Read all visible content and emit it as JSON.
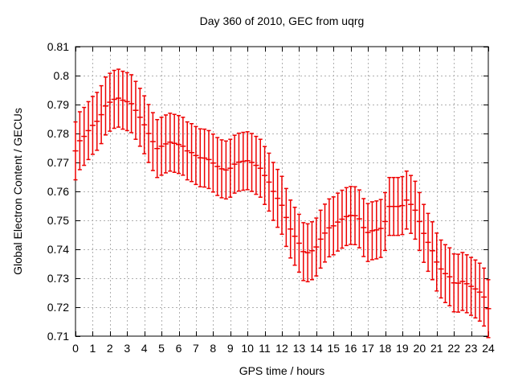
{
  "chart_data": {
    "type": "errorbar-line",
    "title": "Day 360 of 2010, GEC from uqrg",
    "xlabel": "GPS time / hours",
    "ylabel": "Global Electron Content / GECUs",
    "xlim": [
      0,
      24
    ],
    "ylim": [
      0.71,
      0.81
    ],
    "grid": true,
    "legend": "none",
    "xticks": [
      {
        "v": 0,
        "label": "0"
      },
      {
        "v": 1,
        "label": "1"
      },
      {
        "v": 2,
        "label": "2"
      },
      {
        "v": 3,
        "label": "3"
      },
      {
        "v": 4,
        "label": "4"
      },
      {
        "v": 5,
        "label": "5"
      },
      {
        "v": 6,
        "label": "6"
      },
      {
        "v": 7,
        "label": "7"
      },
      {
        "v": 8,
        "label": "8"
      },
      {
        "v": 9,
        "label": "9"
      },
      {
        "v": 10,
        "label": "10"
      },
      {
        "v": 11,
        "label": "11"
      },
      {
        "v": 12,
        "label": "12"
      },
      {
        "v": 13,
        "label": "13"
      },
      {
        "v": 14,
        "label": "14"
      },
      {
        "v": 15,
        "label": "15"
      },
      {
        "v": 16,
        "label": "16"
      },
      {
        "v": 17,
        "label": "17"
      },
      {
        "v": 18,
        "label": "18"
      },
      {
        "v": 19,
        "label": "19"
      },
      {
        "v": 20,
        "label": "20"
      },
      {
        "v": 21,
        "label": "21"
      },
      {
        "v": 22,
        "label": "22"
      },
      {
        "v": 23,
        "label": "23"
      },
      {
        "v": 24,
        "label": "24"
      }
    ],
    "yticks": [
      {
        "v": 0.71,
        "label": "0.71"
      },
      {
        "v": 0.72,
        "label": "0.72"
      },
      {
        "v": 0.73,
        "label": "0.73"
      },
      {
        "v": 0.74,
        "label": "0.74"
      },
      {
        "v": 0.75,
        "label": "0.75"
      },
      {
        "v": 0.76,
        "label": "0.76"
      },
      {
        "v": 0.77,
        "label": "0.77"
      },
      {
        "v": 0.78,
        "label": "0.78"
      },
      {
        "v": 0.79,
        "label": "0.79"
      },
      {
        "v": 0.8,
        "label": "0.8"
      },
      {
        "v": 0.81,
        "label": "0.81"
      }
    ],
    "series": [
      {
        "name": "GEC from uqrg",
        "color": "#ee0000",
        "yerr": 0.01,
        "x_hours": [
          0,
          0.25,
          0.5,
          0.75,
          1,
          1.25,
          1.5,
          1.75,
          2,
          2.25,
          2.5,
          2.75,
          3,
          3.25,
          3.5,
          3.75,
          4,
          4.25,
          4.5,
          4.75,
          5,
          5.25,
          5.5,
          5.75,
          6,
          6.25,
          6.5,
          6.75,
          7,
          7.25,
          7.5,
          7.75,
          8,
          8.25,
          8.5,
          8.75,
          9,
          9.25,
          9.5,
          9.75,
          10,
          10.25,
          10.5,
          10.75,
          11,
          11.25,
          11.5,
          11.75,
          12,
          12.25,
          12.5,
          12.75,
          13,
          13.25,
          13.5,
          13.75,
          14,
          14.25,
          14.5,
          14.75,
          15,
          15.25,
          15.5,
          15.75,
          16,
          16.25,
          16.5,
          16.75,
          17,
          17.25,
          17.5,
          17.75,
          18,
          18.25,
          18.5,
          18.75,
          19,
          19.25,
          19.5,
          19.75,
          20,
          20.25,
          20.5,
          20.75,
          21,
          21.25,
          21.5,
          21.75,
          22,
          22.25,
          22.5,
          22.75,
          23,
          23.25,
          23.5,
          23.75,
          24
        ],
        "y": [
          0.774,
          0.7775,
          0.779,
          0.781,
          0.7828,
          0.7842,
          0.7865,
          0.7895,
          0.7908,
          0.7918,
          0.7922,
          0.7915,
          0.791,
          0.7903,
          0.788,
          0.7856,
          0.783,
          0.78,
          0.7772,
          0.7748,
          0.7756,
          0.7764,
          0.777,
          0.7766,
          0.7762,
          0.7756,
          0.774,
          0.7734,
          0.7724,
          0.7716,
          0.7715,
          0.771,
          0.7698,
          0.7686,
          0.7678,
          0.7674,
          0.768,
          0.7694,
          0.7701,
          0.7704,
          0.7706,
          0.77,
          0.769,
          0.768,
          0.7655,
          0.7632,
          0.76,
          0.7576,
          0.7552,
          0.751,
          0.747,
          0.7445,
          0.7421,
          0.7392,
          0.7388,
          0.7395,
          0.7408,
          0.7435,
          0.7456,
          0.7474,
          0.7481,
          0.7494,
          0.7504,
          0.7513,
          0.7517,
          0.7516,
          0.7505,
          0.7475,
          0.7458,
          0.7464,
          0.7467,
          0.7472,
          0.7496,
          0.7548,
          0.7548,
          0.7548,
          0.7551,
          0.757,
          0.7555,
          0.7535,
          0.7496,
          0.7455,
          0.7424,
          0.7395,
          0.7356,
          0.7332,
          0.7316,
          0.7305,
          0.7284,
          0.7283,
          0.7289,
          0.7281,
          0.7272,
          0.7263,
          0.7252,
          0.7235,
          0.7195
        ]
      }
    ]
  },
  "colors": {
    "background": "#ffffff",
    "frame": "#000000",
    "grid": "#b0b0b0",
    "series": "#ee0000",
    "text": "#000000"
  }
}
